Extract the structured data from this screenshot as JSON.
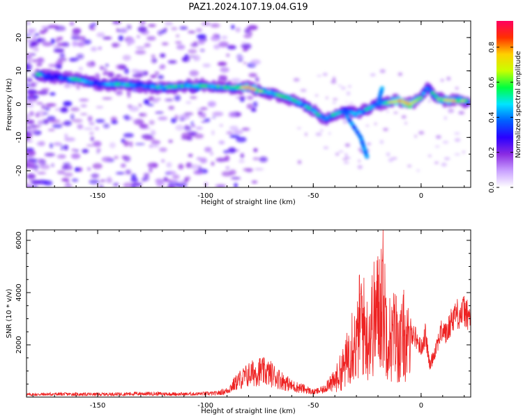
{
  "figure": {
    "title": "PAZ1.2024.107.19.04.G19"
  },
  "chart_data": [
    {
      "type": "heatmap",
      "title": "PAZ1.2024.107.19.04.G19",
      "xlabel": "Height of straight line (km)",
      "ylabel": "Frequency (Hz)",
      "xlim": [
        -183,
        23
      ],
      "ylim": [
        -25,
        25
      ],
      "xticks": [
        -150,
        -100,
        -50,
        0
      ],
      "yticks": [
        -20,
        -10,
        0,
        10,
        20
      ],
      "colorbar": {
        "label": "Normalized spectral amplitude",
        "range": [
          0,
          0.95
        ],
        "ticks": [
          0.0,
          0.2,
          0.4,
          0.6,
          0.8
        ],
        "colormap": [
          "#ffffff",
          "#c9a0ff",
          "#8a2be2",
          "#2a00ff",
          "#0060ff",
          "#00e5ff",
          "#00ff40",
          "#c8ff00",
          "#ffd000",
          "#ff3000",
          "#ff0060"
        ]
      },
      "ridge": [
        {
          "x": -178,
          "y": 9,
          "a": 0.55
        },
        {
          "x": -170,
          "y": 8,
          "a": 0.3
        },
        {
          "x": -160,
          "y": 7.5,
          "a": 0.6
        },
        {
          "x": -150,
          "y": 6,
          "a": 0.35
        },
        {
          "x": -140,
          "y": 6,
          "a": 0.6
        },
        {
          "x": -130,
          "y": 5.5,
          "a": 0.4
        },
        {
          "x": -120,
          "y": 5,
          "a": 0.55
        },
        {
          "x": -110,
          "y": 5.5,
          "a": 0.55
        },
        {
          "x": -100,
          "y": 5.5,
          "a": 0.6
        },
        {
          "x": -90,
          "y": 5,
          "a": 0.55
        },
        {
          "x": -80,
          "y": 5,
          "a": 0.85
        },
        {
          "x": -75,
          "y": 4,
          "a": 0.7
        },
        {
          "x": -70,
          "y": 3.5,
          "a": 0.55
        },
        {
          "x": -65,
          "y": 2.5,
          "a": 0.6
        },
        {
          "x": -60,
          "y": 1.5,
          "a": 0.55
        },
        {
          "x": -55,
          "y": 0,
          "a": 0.45
        },
        {
          "x": -50,
          "y": -2,
          "a": 0.6
        },
        {
          "x": -45,
          "y": -4.5,
          "a": 0.5
        },
        {
          "x": -40,
          "y": -3,
          "a": 0.55
        },
        {
          "x": -35,
          "y": -2,
          "a": 0.45
        },
        {
          "x": -30,
          "y": -3,
          "a": 0.55
        },
        {
          "x": -25,
          "y": -1.5,
          "a": 0.5
        },
        {
          "x": -20,
          "y": 0,
          "a": 0.45
        },
        {
          "x": -15,
          "y": 0.5,
          "a": 0.7
        },
        {
          "x": -10,
          "y": 1,
          "a": 0.9
        },
        {
          "x": -5,
          "y": 0,
          "a": 0.95
        },
        {
          "x": 0,
          "y": 2,
          "a": 0.6
        },
        {
          "x": 3,
          "y": 5,
          "a": 0.45
        },
        {
          "x": 8,
          "y": 1.5,
          "a": 0.65
        },
        {
          "x": 15,
          "y": 1,
          "a": 0.85
        },
        {
          "x": 22,
          "y": 1,
          "a": 0.6
        }
      ]
    },
    {
      "type": "line",
      "xlabel": "Height of straight line (km)",
      "ylabel": "SNR (10 * v/v)",
      "xlim": [
        -183,
        23
      ],
      "ylim": [
        0,
        6400
      ],
      "xticks": [
        -150,
        -100,
        -50,
        0
      ],
      "yticks": [
        2000,
        4000,
        6000
      ],
      "series": [
        {
          "color": "#ee2222",
          "x": [
            -183,
            -170,
            -150,
            -130,
            -110,
            -95,
            -90,
            -85,
            -80,
            -75,
            -70,
            -65,
            -60,
            -55,
            -50,
            -45,
            -40,
            -35,
            -32,
            -30,
            -28,
            -25,
            -22,
            -20,
            -18,
            -16,
            -14,
            -12,
            -10,
            -8,
            -5,
            -2,
            0,
            2,
            4,
            6,
            8,
            10,
            12,
            14,
            16,
            18,
            20,
            22
          ],
          "y": [
            100,
            120,
            110,
            140,
            120,
            150,
            250,
            650,
            900,
            1050,
            950,
            700,
            450,
            350,
            200,
            300,
            1000,
            2000,
            3600,
            3000,
            5000,
            3600,
            4800,
            5200,
            6400,
            4400,
            3400,
            4000,
            3000,
            3800,
            2800,
            2400,
            2000,
            2600,
            1300,
            1800,
            2400,
            2800,
            2600,
            3200,
            3500,
            3400,
            3600,
            3300
          ]
        }
      ]
    }
  ]
}
